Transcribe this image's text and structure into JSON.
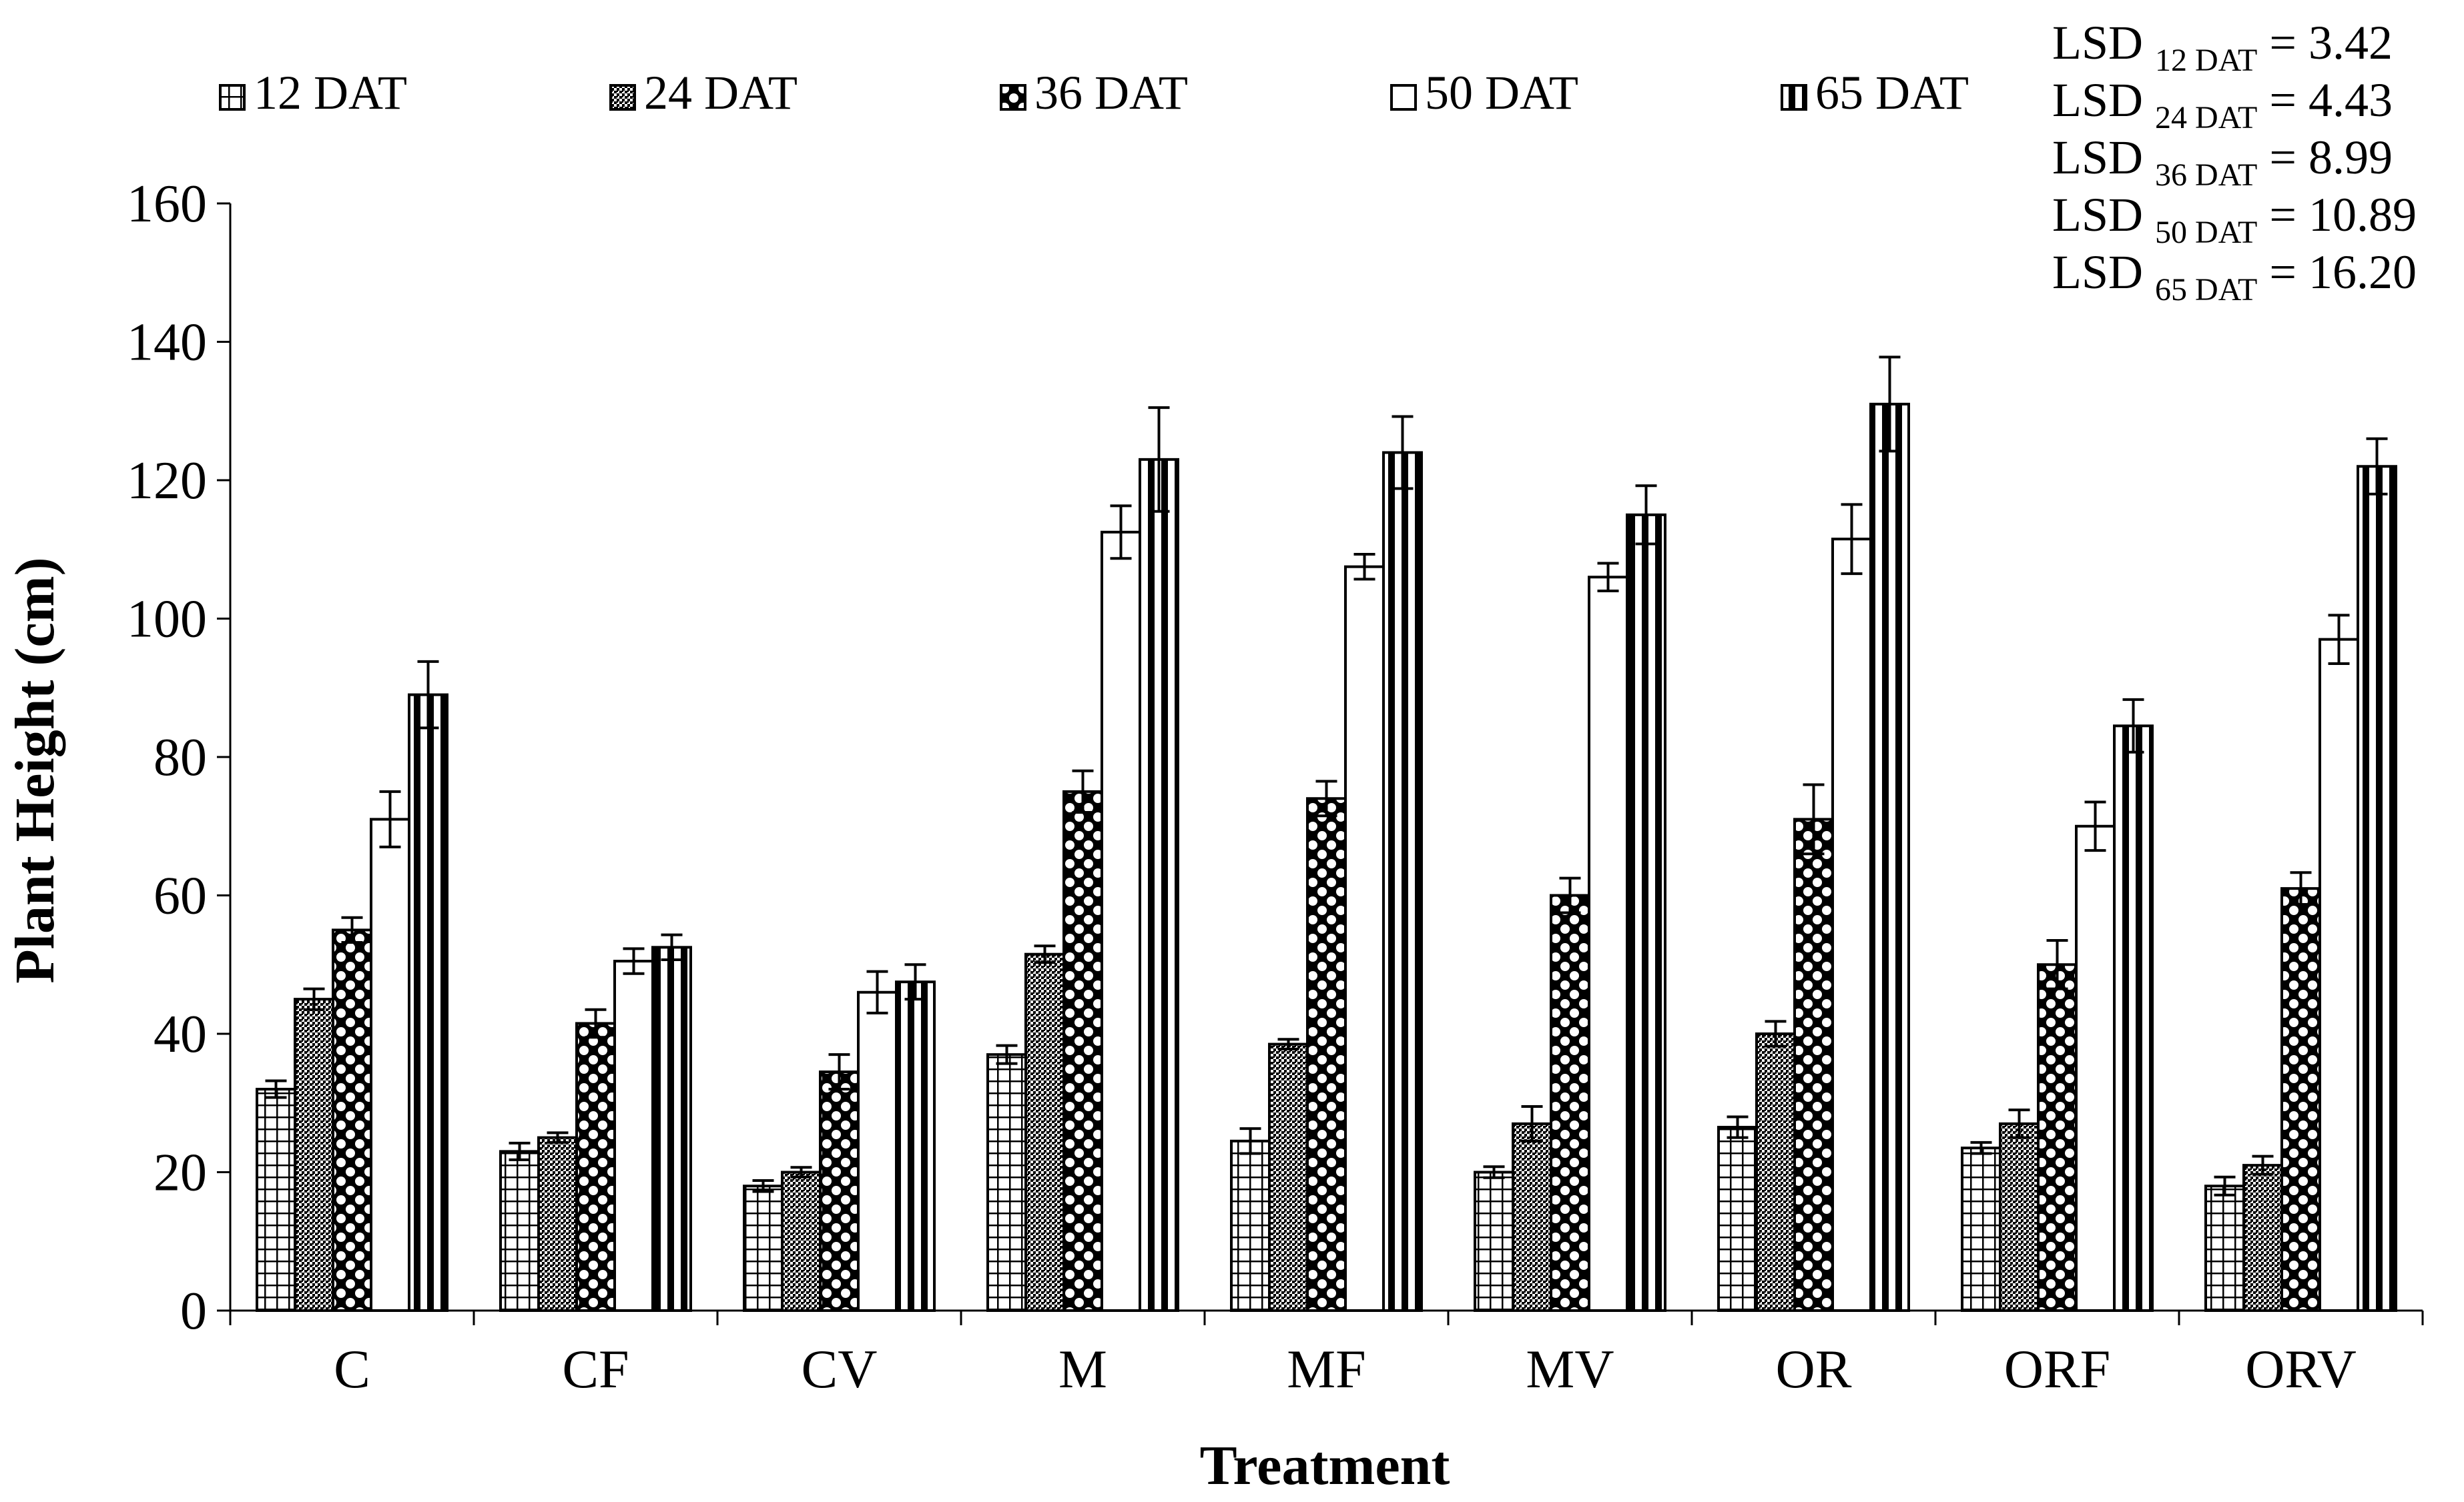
{
  "chart_data": {
    "type": "bar",
    "title": "",
    "xlabel": "Treatment",
    "ylabel": "Plant Height (cm)",
    "ylim": [
      0,
      160
    ],
    "yticks": [
      0,
      20,
      40,
      60,
      80,
      100,
      120,
      140,
      160
    ],
    "categories": [
      "C",
      "CF",
      "CV",
      "M",
      "MF",
      "MV",
      "OR",
      "ORF",
      "ORV"
    ],
    "series": [
      {
        "name": "12 DAT",
        "pattern": "grid",
        "values": [
          32,
          23,
          18,
          37,
          24.5,
          20,
          26.5,
          23.5,
          18
        ],
        "errors": [
          1.2,
          1.2,
          0.8,
          1.3,
          1.8,
          0.8,
          1.5,
          0.8,
          1.3
        ]
      },
      {
        "name": "24 DAT",
        "pattern": "stipple",
        "values": [
          45,
          25,
          20,
          51.5,
          38.5,
          27,
          40,
          27,
          21
        ],
        "errors": [
          1.5,
          0.7,
          0.7,
          1.2,
          0.7,
          2.5,
          1.8,
          2.0,
          1.3
        ]
      },
      {
        "name": "36 DAT",
        "pattern": "dots",
        "values": [
          55,
          41.5,
          34.5,
          75,
          74,
          60,
          71,
          50,
          61
        ],
        "errors": [
          1.8,
          2.0,
          2.5,
          3.0,
          2.5,
          2.5,
          5.0,
          3.5,
          2.3
        ]
      },
      {
        "name": "50 DAT",
        "pattern": "white",
        "values": [
          71,
          50.5,
          46,
          112.5,
          107.5,
          106,
          111.5,
          70,
          97
        ],
        "errors": [
          4.0,
          1.8,
          3.0,
          3.8,
          1.8,
          2.0,
          5.0,
          3.5,
          3.5
        ]
      },
      {
        "name": "65 DAT",
        "pattern": "vstripe",
        "values": [
          89,
          52.5,
          47.5,
          123,
          124,
          115,
          131,
          84.5,
          122
        ],
        "errors": [
          4.8,
          1.8,
          2.5,
          7.5,
          5.2,
          4.2,
          6.8,
          3.8,
          4.0
        ]
      }
    ],
    "legend_position": "top",
    "grid": false,
    "lsd": [
      {
        "label": "LSD",
        "sub": "12 DAT",
        "value": "= 3.42"
      },
      {
        "label": "LSD",
        "sub": "24 DAT",
        "value": "= 4.43"
      },
      {
        "label": "LSD",
        "sub": "36 DAT",
        "value": "= 8.99"
      },
      {
        "label": "LSD",
        "sub": "50 DAT",
        "value": "= 10.89"
      },
      {
        "label": "LSD",
        "sub": "65 DAT",
        "value": "= 16.20"
      }
    ]
  }
}
